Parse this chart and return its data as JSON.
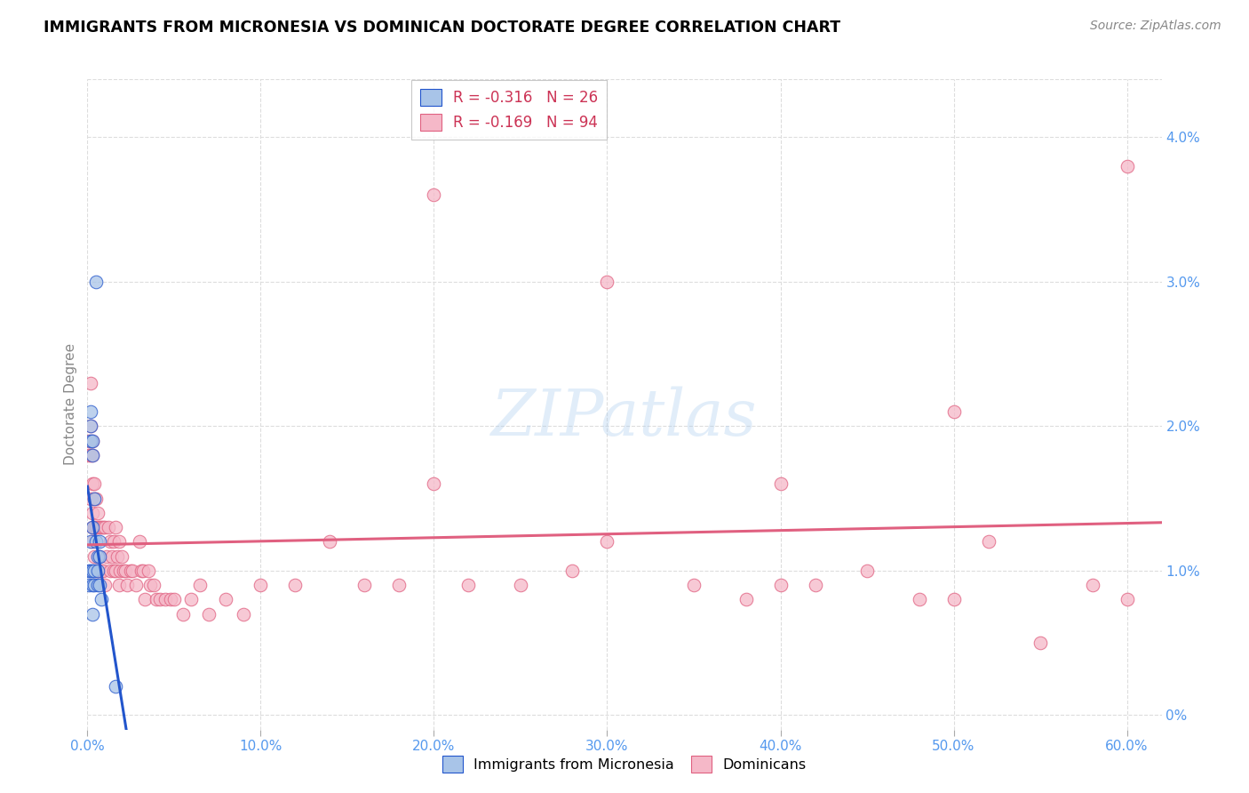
{
  "title": "IMMIGRANTS FROM MICRONESIA VS DOMINICAN DOCTORATE DEGREE CORRELATION CHART",
  "source": "Source: ZipAtlas.com",
  "ylabel": "Doctorate Degree",
  "legend_blue_r": "-0.316",
  "legend_blue_n": "26",
  "legend_pink_r": "-0.169",
  "legend_pink_n": "94",
  "blue_color": "#A8C4E8",
  "pink_color": "#F5B8C8",
  "trendline_blue": "#2255CC",
  "trendline_pink": "#E06080",
  "blue_x": [
    0.001,
    0.001,
    0.002,
    0.002,
    0.002,
    0.002,
    0.002,
    0.003,
    0.003,
    0.003,
    0.003,
    0.003,
    0.004,
    0.004,
    0.004,
    0.005,
    0.005,
    0.006,
    0.006,
    0.006,
    0.007,
    0.007,
    0.007,
    0.008,
    0.016,
    0.003
  ],
  "blue_y": [
    0.009,
    0.01,
    0.019,
    0.02,
    0.021,
    0.012,
    0.01,
    0.019,
    0.018,
    0.013,
    0.01,
    0.009,
    0.015,
    0.01,
    0.009,
    0.03,
    0.012,
    0.011,
    0.01,
    0.009,
    0.012,
    0.011,
    0.009,
    0.008,
    0.002,
    0.007
  ],
  "pink_x": [
    0.001,
    0.001,
    0.002,
    0.002,
    0.002,
    0.002,
    0.003,
    0.003,
    0.003,
    0.003,
    0.003,
    0.003,
    0.004,
    0.004,
    0.004,
    0.004,
    0.005,
    0.005,
    0.005,
    0.006,
    0.006,
    0.006,
    0.007,
    0.007,
    0.008,
    0.008,
    0.009,
    0.009,
    0.01,
    0.01,
    0.011,
    0.012,
    0.013,
    0.013,
    0.014,
    0.015,
    0.015,
    0.016,
    0.016,
    0.017,
    0.018,
    0.018,
    0.019,
    0.02,
    0.021,
    0.022,
    0.023,
    0.025,
    0.026,
    0.028,
    0.03,
    0.031,
    0.032,
    0.033,
    0.035,
    0.036,
    0.038,
    0.04,
    0.042,
    0.045,
    0.048,
    0.05,
    0.055,
    0.06,
    0.065,
    0.07,
    0.08,
    0.09,
    0.1,
    0.12,
    0.14,
    0.16,
    0.18,
    0.2,
    0.22,
    0.25,
    0.28,
    0.3,
    0.35,
    0.38,
    0.4,
    0.42,
    0.45,
    0.48,
    0.5,
    0.52,
    0.55,
    0.58,
    0.6,
    0.6,
    0.5,
    0.4,
    0.3,
    0.2
  ],
  "pink_y": [
    0.019,
    0.018,
    0.023,
    0.02,
    0.018,
    0.015,
    0.019,
    0.018,
    0.016,
    0.014,
    0.013,
    0.012,
    0.016,
    0.015,
    0.013,
    0.011,
    0.015,
    0.013,
    0.01,
    0.014,
    0.013,
    0.01,
    0.013,
    0.011,
    0.013,
    0.01,
    0.013,
    0.01,
    0.013,
    0.009,
    0.011,
    0.013,
    0.012,
    0.01,
    0.011,
    0.012,
    0.01,
    0.013,
    0.01,
    0.011,
    0.012,
    0.009,
    0.01,
    0.011,
    0.01,
    0.01,
    0.009,
    0.01,
    0.01,
    0.009,
    0.012,
    0.01,
    0.01,
    0.008,
    0.01,
    0.009,
    0.009,
    0.008,
    0.008,
    0.008,
    0.008,
    0.008,
    0.007,
    0.008,
    0.009,
    0.007,
    0.008,
    0.007,
    0.009,
    0.009,
    0.012,
    0.009,
    0.009,
    0.016,
    0.009,
    0.009,
    0.01,
    0.012,
    0.009,
    0.008,
    0.009,
    0.009,
    0.01,
    0.008,
    0.008,
    0.012,
    0.005,
    0.009,
    0.008,
    0.038,
    0.021,
    0.016,
    0.03,
    0.036
  ],
  "xlim": [
    0.0,
    0.62
  ],
  "ylim": [
    -0.001,
    0.044
  ],
  "ytick_vals": [
    0.0,
    0.01,
    0.02,
    0.03,
    0.04
  ],
  "ytick_labels": [
    "0%",
    "1.0%",
    "2.0%",
    "3.0%",
    "4.0%"
  ],
  "xtick_vals": [
    0.0,
    0.1,
    0.2,
    0.3,
    0.4,
    0.5,
    0.6
  ],
  "xtick_labels": [
    "0.0%",
    "10.0%",
    "20.0%",
    "30.0%",
    "40.0%",
    "50.0%",
    "60.0%"
  ],
  "blue_trend_x": [
    0.001,
    0.025
  ],
  "pink_trend_x": [
    0.0,
    0.62
  ],
  "watermark": "ZIPatlas",
  "grid_color": "#dddddd",
  "text_color_blue": "#5599EE"
}
